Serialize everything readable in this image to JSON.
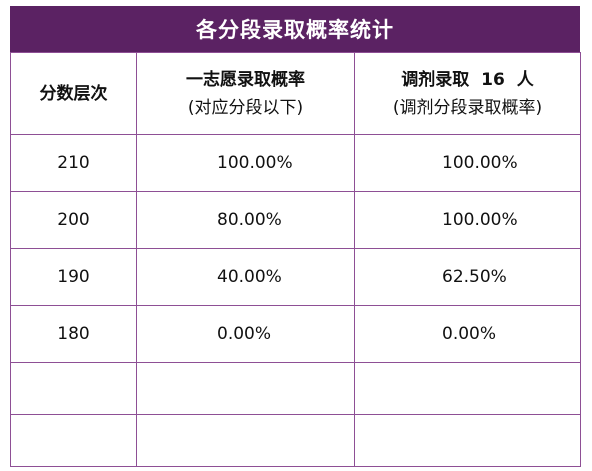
{
  "title": "各分段录取概率统计",
  "header": {
    "col1": "分数层次",
    "col2_line1": "一志愿录取概率",
    "col2_line2": "(对应分段以下)",
    "col3_line1_pre": "调剂录取",
    "col3_line1_num": "16",
    "col3_line1_post": "人",
    "col3_line2": "(调剂分段录取概率)"
  },
  "rows": [
    {
      "score": "210",
      "first_choice": "100.00%",
      "adjust": "100.00%"
    },
    {
      "score": "200",
      "first_choice": "80.00%",
      "adjust": "100.00%"
    },
    {
      "score": "190",
      "first_choice": "40.00%",
      "adjust": "62.50%"
    },
    {
      "score": "180",
      "first_choice": "0.00%",
      "adjust": "0.00%"
    }
  ],
  "colors": {
    "title_bg": "#5b2263",
    "border": "#8e4f95"
  }
}
